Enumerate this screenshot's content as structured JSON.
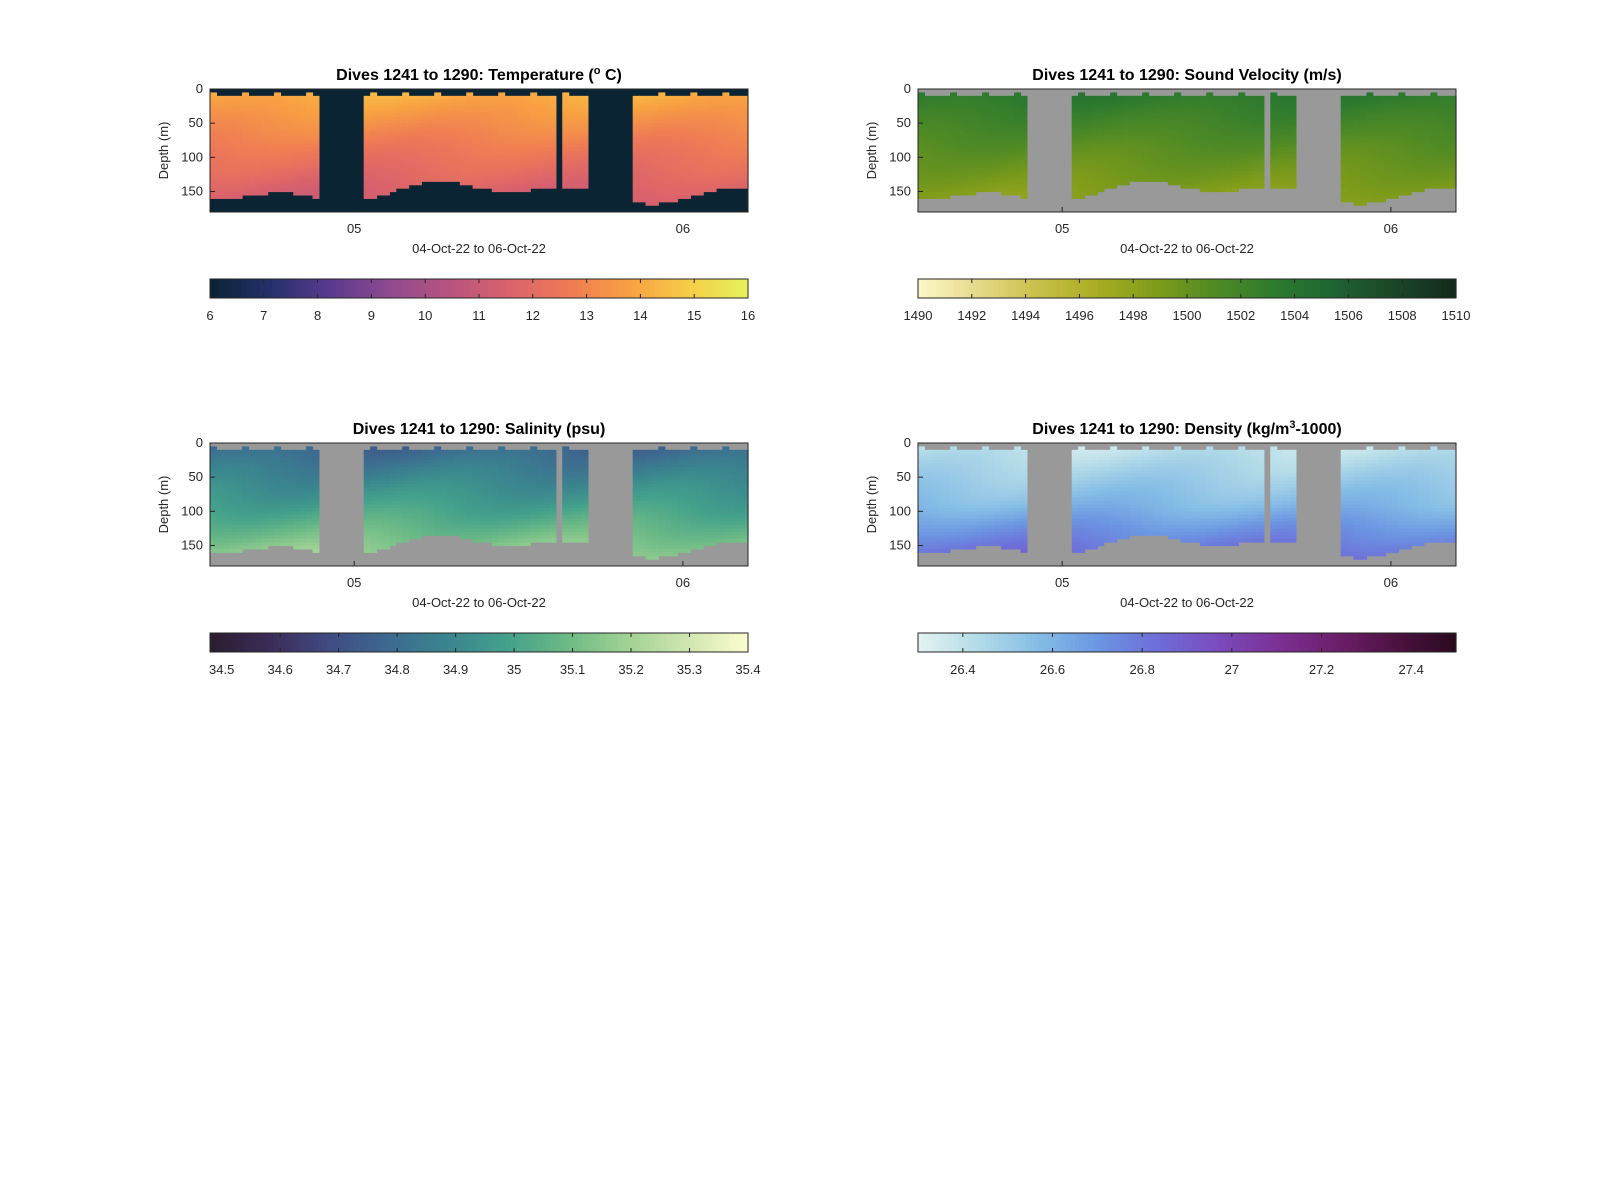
{
  "chart_data": [
    {
      "type": "heatmap",
      "title": "Dives 1241 to 1290: Temperature (",
      "title_super": "o",
      "title_end": " C)",
      "ylabel": "Depth (m)",
      "xlabel": "04-Oct-22 to 06-Oct-22",
      "xticks": [
        "05",
        "06"
      ],
      "yticks": [
        0,
        50,
        100,
        150
      ],
      "ylim": [
        0,
        180
      ],
      "missing_color": "#0a2433",
      "colormap": [
        "#0a2433",
        "#24306b",
        "#5a3a8e",
        "#8e4a8f",
        "#b8547f",
        "#d9626c",
        "#ee7b55",
        "#f8a042",
        "#f7cc47",
        "#e4f35c"
      ],
      "colorbar": {
        "ticks": [
          6,
          7,
          8,
          9,
          10,
          11,
          12,
          13,
          14,
          15,
          16
        ],
        "range": [
          6,
          16
        ]
      },
      "profile": {
        "surface": 14.3,
        "mid": 12.5,
        "deep": 11.0
      }
    },
    {
      "type": "heatmap",
      "title": "Dives 1241 to 1290: Sound Velocity (m/s)",
      "ylabel": "Depth (m)",
      "xlabel": "04-Oct-22 to 06-Oct-22",
      "xticks": [
        "05",
        "06"
      ],
      "yticks": [
        0,
        50,
        100,
        150
      ],
      "ylim": [
        0,
        180
      ],
      "missing_color": "#999999",
      "colormap": [
        "#fdf8c9",
        "#e6d98a",
        "#c9bf4a",
        "#a8ad22",
        "#7d9b1a",
        "#4f8a25",
        "#2c7a2f",
        "#1f6231",
        "#1b4528",
        "#13291c"
      ],
      "colorbar": {
        "ticks": [
          1490,
          1492,
          1494,
          1496,
          1498,
          1500,
          1502,
          1504,
          1506,
          1508,
          1510
        ],
        "range": [
          1490,
          1510
        ]
      },
      "profile": {
        "surface": 1503.8,
        "mid": 1500.5,
        "deep": 1497.6
      }
    },
    {
      "type": "heatmap",
      "title": "Dives 1241 to 1290: Salinity (psu)",
      "ylabel": "Depth (m)",
      "xlabel": "04-Oct-22 to 06-Oct-22",
      "xticks": [
        "05",
        "06"
      ],
      "yticks": [
        0,
        50,
        100,
        150
      ],
      "ylim": [
        0,
        180
      ],
      "missing_color": "#999999",
      "colormap": [
        "#2a1d2e",
        "#3b2c58",
        "#404b82",
        "#3d6a90",
        "#3a868f",
        "#44a18b",
        "#6dbb86",
        "#a2d295",
        "#d1e6b0",
        "#fcfdcf"
      ],
      "colorbar": {
        "ticks": [
          34.5,
          34.6,
          34.7,
          34.8,
          34.9,
          35,
          35.1,
          35.2,
          35.3,
          35.4
        ],
        "range": [
          34.48,
          35.4
        ]
      },
      "profile": {
        "surface": 34.76,
        "mid": 34.98,
        "deep": 35.22
      }
    },
    {
      "type": "heatmap",
      "title": "Dives 1241 to 1290: Density (kg/m",
      "title_super": "3",
      "title_end": "-1000)",
      "ylabel": "Depth (m)",
      "xlabel": "04-Oct-22 to 06-Oct-22",
      "xticks": [
        "05",
        "06"
      ],
      "yticks": [
        0,
        50,
        100,
        150
      ],
      "ylim": [
        0,
        180
      ],
      "missing_color": "#999999",
      "colormap": [
        "#e5f3f2",
        "#b3dbe8",
        "#86bde6",
        "#6b95e2",
        "#6e6ed8",
        "#7a4cbe",
        "#7b3195",
        "#6d1e6b",
        "#4c1240",
        "#2a0a1f"
      ],
      "colorbar": {
        "ticks": [
          26.4,
          26.6,
          26.8,
          27,
          27.2,
          27.4
        ],
        "range": [
          26.3,
          27.5
        ]
      },
      "profile": {
        "surface": 26.38,
        "mid": 26.58,
        "deep": 26.9
      }
    }
  ]
}
